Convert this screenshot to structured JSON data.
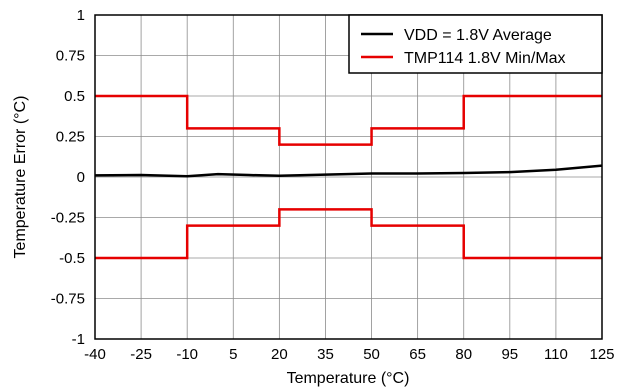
{
  "chart_data": {
    "type": "line",
    "xlabel": "Temperature (°C)",
    "ylabel": "Temperature Error (°C)",
    "xlim": [
      -40,
      125
    ],
    "ylim": [
      -1,
      1
    ],
    "x_ticks": [
      -40,
      -25,
      -10,
      5,
      20,
      35,
      50,
      65,
      80,
      95,
      110,
      125
    ],
    "y_ticks": [
      1,
      0.75,
      0.5,
      0.25,
      0,
      -0.25,
      -0.5,
      -0.75,
      -1
    ],
    "y_tick_labels": [
      "1",
      "0.75",
      "0.5",
      "0.25",
      "0",
      "-0.25",
      "-0.5",
      "-0.75",
      "-1"
    ],
    "grid": true,
    "legend_position": "top-right",
    "series": [
      {
        "name": "VDD = 1.8V Average",
        "color": "#000000",
        "x": [
          -40,
          -25,
          -10,
          0,
          10,
          20,
          35,
          50,
          65,
          80,
          95,
          110,
          125
        ],
        "y": [
          0.01,
          0.012,
          0.005,
          0.018,
          0.012,
          0.008,
          0.015,
          0.022,
          0.022,
          0.025,
          0.03,
          0.045,
          0.07
        ]
      },
      {
        "name": "TMP114 1.8V Min/Max",
        "color": "#e60000",
        "x": [
          -40,
          -10,
          -10,
          20,
          20,
          50,
          50,
          80,
          80,
          125
        ],
        "y": [
          0.5,
          0.5,
          0.3,
          0.3,
          0.2,
          0.2,
          0.3,
          0.3,
          0.5,
          0.5
        ]
      },
      {
        "color": "#e60000",
        "x": [
          -40,
          -10,
          -10,
          20,
          20,
          50,
          50,
          80,
          80,
          125
        ],
        "y": [
          -0.5,
          -0.5,
          -0.3,
          -0.3,
          -0.2,
          -0.2,
          -0.3,
          -0.3,
          -0.5,
          -0.5
        ]
      }
    ]
  }
}
